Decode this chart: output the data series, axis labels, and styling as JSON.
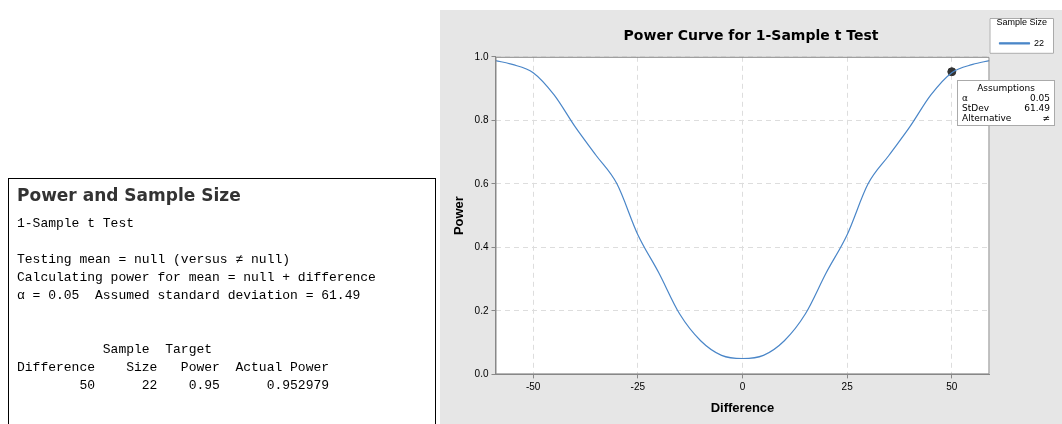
{
  "chart_data": [
    {
      "type": "other",
      "title": "Power and Sample Size",
      "annotations": [
        "1-Sample t Test",
        "Testing mean = null (versus ≠ null)",
        "Calculating power for mean = null + difference",
        "α = 0.05  Assumed standard deviation = 61.49",
        "           Sample  Target",
        "Difference    Size   Power  Actual Power",
        "        50      22    0.95      0.952979"
      ]
    },
    {
      "type": "line",
      "title": "Power Curve for 1-Sample t Test",
      "xlabel": "Difference",
      "ylabel": "Power",
      "legend_title": "Sample Size",
      "xlim": [
        -59,
        59
      ],
      "xticks": [
        -50,
        -25,
        0,
        25,
        50
      ],
      "ylim": [
        0,
        1
      ],
      "yticks": [
        {
          "value": 0,
          "label": "0.0"
        },
        0.2,
        0.4,
        0.6,
        0.8,
        {
          "value": 1,
          "label": "1.0"
        }
      ],
      "grid": true,
      "legend": "top right",
      "marker": "none",
      "line_style": "solid",
      "series": [
        {
          "name": "22",
          "color": "#4a86c8",
          "x": [
            -59,
            -55,
            -50,
            -45,
            -40,
            -35,
            -30,
            -25,
            -20,
            -15,
            -10,
            -5,
            0,
            5,
            10,
            15,
            20,
            25,
            30,
            35,
            40,
            45,
            50,
            55,
            59
          ],
          "values": [
            0.988,
            0.976,
            0.95,
            0.88,
            0.78,
            0.69,
            0.6,
            0.44,
            0.32,
            0.19,
            0.106,
            0.06,
            0.05,
            0.06,
            0.106,
            0.19,
            0.32,
            0.44,
            0.6,
            0.69,
            0.78,
            0.88,
            0.95,
            0.976,
            0.988
          ]
        },
        {
          "type": "scatter",
          "color": "#333333",
          "marker": "circle",
          "x": [
            50
          ],
          "values": [
            0.953
          ]
        }
      ],
      "annotations": [
        "Assumptions",
        "α",
        "0.05",
        "StDev",
        "61.49",
        "Alternative",
        "≠"
      ]
    }
  ]
}
